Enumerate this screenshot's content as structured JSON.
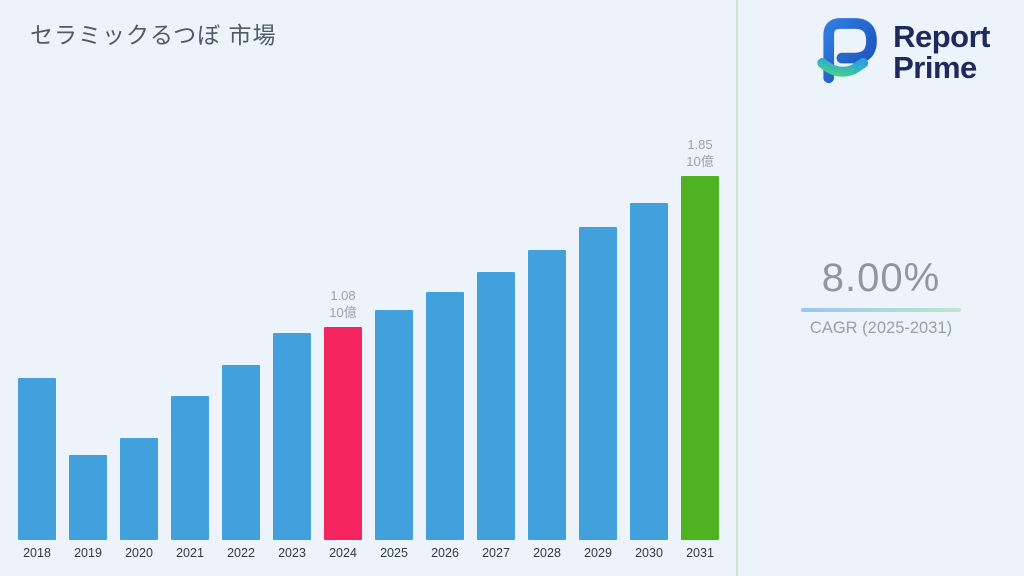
{
  "page": {
    "background_color": "#edf3fa"
  },
  "title": "セラミックるつぼ 市場",
  "brand": {
    "name_line1": "Report",
    "name_line2": "Prime",
    "logo_icon": "report-prime-mark",
    "text_color": "#1e2a5c"
  },
  "stats": {
    "cagr_value": "8.00%",
    "cagr_label": "CAGR (2025-2031)"
  },
  "chart_data": {
    "type": "bar",
    "title": "セラミックるつぼ 市場",
    "xlabel": "",
    "ylabel": "",
    "unit_label": "10億",
    "grid": false,
    "legend": "none",
    "ylim": [
      0,
      2
    ],
    "categories": [
      "2018",
      "2019",
      "2020",
      "2021",
      "2022",
      "2023",
      "2024",
      "2025",
      "2026",
      "2027",
      "2028",
      "2029",
      "2030",
      "2031"
    ],
    "values": [
      0.82,
      0.43,
      0.52,
      0.73,
      0.89,
      1.05,
      1.08,
      1.17,
      1.26,
      1.36,
      1.47,
      1.59,
      1.71,
      1.85
    ],
    "data_labels": {
      "2024": {
        "value": "1.08",
        "unit": "10億"
      },
      "2031": {
        "value": "1.85",
        "unit": "10億"
      }
    },
    "bar_colors": {
      "default": "#42a0dd",
      "2024": "#f4245f",
      "2031": "#4fb321"
    },
    "label_color": "#9aa3ac",
    "axis_text_color": "#2e3a49"
  }
}
